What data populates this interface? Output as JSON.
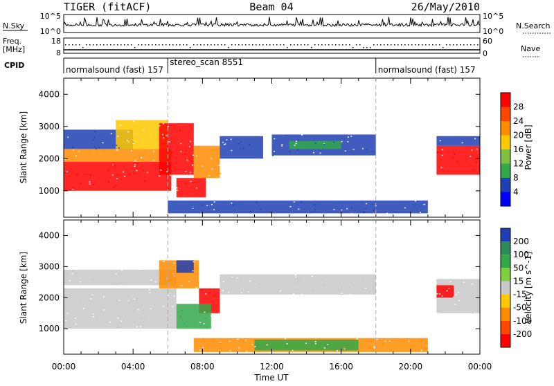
{
  "header": {
    "title": "TIGER (fitACF)",
    "beam": "Beam 04",
    "date": "26/May/2010"
  },
  "top_panels": {
    "nsky": {
      "label": "N.Sky",
      "tick_hi": "10^5",
      "tick_lo": "10^0"
    },
    "nsearch": {
      "label": "N.Search",
      "tick_hi": "10^5",
      "tick_lo": "10^0"
    },
    "freq": {
      "label_line1": "Freq.",
      "label_line2": "[MHz]",
      "tick_hi": "18",
      "tick_lo": "8"
    },
    "nave": {
      "label": "Nave",
      "tick_hi": "60",
      "tick_lo": "0"
    },
    "cpid": {
      "label": "CPID"
    }
  },
  "cpid_segments": [
    {
      "name": "normalsound (fast)",
      "id": "157",
      "start": 0,
      "end": 6
    },
    {
      "name": "stereo_scan",
      "id": "8551",
      "start": 6,
      "end": 18
    },
    {
      "name": "normalsound (fast)",
      "id": "157",
      "start": 18,
      "end": 24
    }
  ],
  "colors": {
    "red": "#ff0000",
    "orange": "#ff8c00",
    "yellow": "#ffc800",
    "green": "#33a84a",
    "blue": "#1f3fb4",
    "grey": "#c8c8c8"
  },
  "chart_data": [
    {
      "type": "heatmap",
      "panel": "power",
      "xlabel": "Time UT",
      "ylabel": "Slant Range [km]",
      "x_ticks": [
        "00:00",
        "04:00",
        "08:00",
        "12:00",
        "16:00",
        "20:00",
        "00:00"
      ],
      "x_range_hours": [
        0,
        24
      ],
      "y_ticks": [
        1000,
        2000,
        3000,
        4000
      ],
      "ylim": [
        180,
        4500
      ],
      "colorbar": {
        "label": "Power [dB]",
        "ticks": [
          "4",
          "8",
          "12",
          "16",
          "20",
          "24",
          "28"
        ],
        "colors": [
          "#0000ff",
          "#1f3fb4",
          "#33a84a",
          "#7fbf3f",
          "#ffc800",
          "#ff8c00",
          "#ff4500",
          "#ff0000"
        ]
      },
      "regions": [
        {
          "t0": 0.0,
          "t1": 6.2,
          "r0": 1000,
          "r1": 1900,
          "color": "red"
        },
        {
          "t0": 0.0,
          "t1": 6.2,
          "r0": 1900,
          "r1": 2300,
          "color": "orange"
        },
        {
          "t0": 0.0,
          "t1": 4.0,
          "r0": 2300,
          "r1": 2900,
          "color": "blue"
        },
        {
          "t0": 3.0,
          "t1": 6.0,
          "r0": 2300,
          "r1": 3200,
          "color": "yellow"
        },
        {
          "t0": 5.5,
          "t1": 7.5,
          "r0": 1500,
          "r1": 3100,
          "color": "red"
        },
        {
          "t0": 6.5,
          "t1": 8.2,
          "r0": 800,
          "r1": 1400,
          "color": "red"
        },
        {
          "t0": 7.5,
          "t1": 9.0,
          "r0": 1400,
          "r1": 2400,
          "color": "orange"
        },
        {
          "t0": 9.0,
          "t1": 11.5,
          "r0": 2000,
          "r1": 2700,
          "color": "blue"
        },
        {
          "t0": 12.0,
          "t1": 18.0,
          "r0": 2100,
          "r1": 2750,
          "color": "blue"
        },
        {
          "t0": 13.0,
          "t1": 16.0,
          "r0": 2300,
          "r1": 2550,
          "color": "green"
        },
        {
          "t0": 6.0,
          "t1": 21.0,
          "r0": 300,
          "r1": 700,
          "color": "blue"
        },
        {
          "t0": 21.5,
          "t1": 24.0,
          "r0": 1500,
          "r1": 2400,
          "color": "red"
        },
        {
          "t0": 21.5,
          "t1": 24.0,
          "r0": 2400,
          "r1": 2700,
          "color": "blue"
        }
      ]
    },
    {
      "type": "heatmap",
      "panel": "velocity",
      "xlabel": "Time UT",
      "ylabel": "Slant Range [km]",
      "x_ticks": [
        "00:00",
        "04:00",
        "08:00",
        "12:00",
        "16:00",
        "20:00",
        "00:00"
      ],
      "x_range_hours": [
        0,
        24
      ],
      "y_ticks": [
        1000,
        2000,
        3000,
        4000
      ],
      "ylim": [
        180,
        4500
      ],
      "colorbar": {
        "label": "Velocity [m s^-1]",
        "ticks": [
          "200",
          "100",
          "50",
          "15",
          "-15",
          "-50",
          "-100",
          "-200"
        ],
        "colors": [
          "#1f3fb4",
          "#2e8b57",
          "#33a84a",
          "#7fcf3f",
          "#c8c8c8",
          "#ffc800",
          "#ff8c00",
          "#ff4500",
          "#ff0000"
        ]
      },
      "regions": [
        {
          "t0": 0.0,
          "t1": 6.5,
          "r0": 1000,
          "r1": 2300,
          "color": "grey"
        },
        {
          "t0": 0.0,
          "t1": 6.5,
          "r0": 2400,
          "r1": 2900,
          "color": "grey"
        },
        {
          "t0": 5.5,
          "t1": 7.8,
          "r0": 2300,
          "r1": 3200,
          "color": "orange"
        },
        {
          "t0": 6.5,
          "t1": 7.5,
          "r0": 2800,
          "r1": 3200,
          "color": "blue"
        },
        {
          "t0": 7.8,
          "t1": 9.0,
          "r0": 1500,
          "r1": 2300,
          "color": "red"
        },
        {
          "t0": 6.5,
          "t1": 8.5,
          "r0": 1000,
          "r1": 1800,
          "color": "green"
        },
        {
          "t0": 9.0,
          "t1": 18.0,
          "r0": 2100,
          "r1": 2750,
          "color": "grey"
        },
        {
          "t0": 7.5,
          "t1": 21.0,
          "r0": 250,
          "r1": 700,
          "color": "orange"
        },
        {
          "t0": 11.0,
          "t1": 17.0,
          "r0": 300,
          "r1": 650,
          "color": "green"
        },
        {
          "t0": 21.5,
          "t1": 24.0,
          "r0": 1500,
          "r1": 2600,
          "color": "grey"
        },
        {
          "t0": 21.5,
          "t1": 22.5,
          "r0": 2000,
          "r1": 2400,
          "color": "red"
        }
      ]
    }
  ]
}
